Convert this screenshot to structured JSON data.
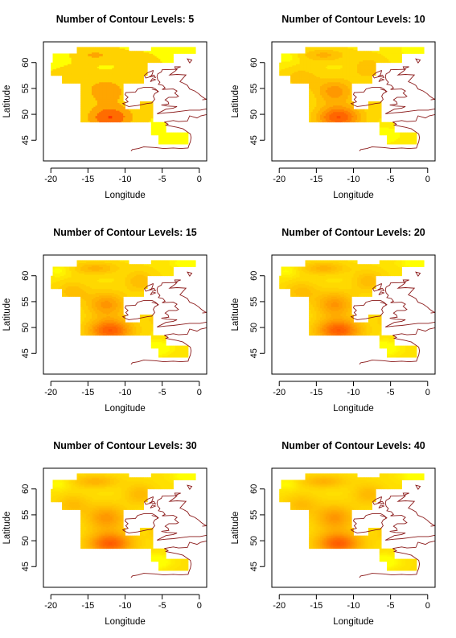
{
  "chart_data": [
    {
      "type": "heatmap",
      "title": "Number of Contour Levels: 5",
      "levels": 5,
      "xlabel": "Longitude",
      "ylabel": "Latitude",
      "x_ticks": [
        -20,
        -15,
        -10,
        -5,
        0
      ],
      "y_ticks": [
        45,
        50,
        55,
        60
      ],
      "xlim": [
        -21,
        1
      ],
      "ylim": [
        41,
        64
      ],
      "grid": false,
      "colors": {
        "low": "#FFFF00",
        "high": "#FF3300",
        "coast": "#8B1A1A"
      }
    },
    {
      "type": "heatmap",
      "title": "Number of Contour Levels: 10",
      "levels": 10,
      "xlabel": "Longitude",
      "ylabel": "Latitude",
      "x_ticks": [
        -20,
        -15,
        -10,
        -5,
        0
      ],
      "y_ticks": [
        45,
        50,
        55,
        60
      ],
      "xlim": [
        -21,
        1
      ],
      "ylim": [
        41,
        64
      ],
      "grid": false,
      "colors": {
        "low": "#FFFF00",
        "high": "#FF3300",
        "coast": "#8B1A1A"
      }
    },
    {
      "type": "heatmap",
      "title": "Number of Contour Levels: 15",
      "levels": 15,
      "xlabel": "Longitude",
      "ylabel": "Latitude",
      "x_ticks": [
        -20,
        -15,
        -10,
        -5,
        0
      ],
      "y_ticks": [
        45,
        50,
        55,
        60
      ],
      "xlim": [
        -21,
        1
      ],
      "ylim": [
        41,
        64
      ],
      "grid": false,
      "colors": {
        "low": "#FFFF00",
        "high": "#FF3300",
        "coast": "#8B1A1A"
      }
    },
    {
      "type": "heatmap",
      "title": "Number of Contour Levels: 20",
      "levels": 20,
      "xlabel": "Longitude",
      "ylabel": "Latitude",
      "x_ticks": [
        -20,
        -15,
        -10,
        -5,
        0
      ],
      "y_ticks": [
        45,
        50,
        55,
        60
      ],
      "xlim": [
        -21,
        1
      ],
      "ylim": [
        41,
        64
      ],
      "grid": false,
      "colors": {
        "low": "#FFFF00",
        "high": "#FF3300",
        "coast": "#8B1A1A"
      }
    },
    {
      "type": "heatmap",
      "title": "Number of Contour Levels: 30",
      "levels": 30,
      "xlabel": "Longitude",
      "ylabel": "Latitude",
      "x_ticks": [
        -20,
        -15,
        -10,
        -5,
        0
      ],
      "y_ticks": [
        45,
        50,
        55,
        60
      ],
      "xlim": [
        -21,
        1
      ],
      "ylim": [
        41,
        64
      ],
      "grid": false,
      "colors": {
        "low": "#FFFF00",
        "high": "#FF3300",
        "coast": "#8B1A1A"
      }
    },
    {
      "type": "heatmap",
      "title": "Number of Contour Levels: 40",
      "levels": 40,
      "xlabel": "Longitude",
      "ylabel": "Latitude",
      "x_ticks": [
        -20,
        -15,
        -10,
        -5,
        0
      ],
      "y_ticks": [
        45,
        50,
        55,
        60
      ],
      "xlim": [
        -21,
        1
      ],
      "ylim": [
        41,
        64
      ],
      "grid": false,
      "colors": {
        "low": "#FFFF00",
        "high": "#FF3300",
        "coast": "#8B1A1A"
      }
    }
  ]
}
